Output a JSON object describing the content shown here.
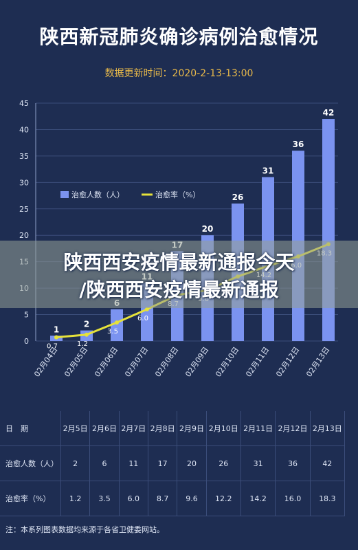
{
  "header": {
    "title": "陕西新冠肺炎确诊病例治愈情况",
    "subtitle": "数据更新时间：2020-2-13-13:00"
  },
  "banner": {
    "line1": "陕西西安疫情最新通报今天",
    "line2": "/陕西西安疫情最新通报"
  },
  "chart_data": {
    "type": "bar",
    "categories": [
      "02月04日",
      "02月05日",
      "02月06日",
      "02月07日",
      "02月08日",
      "02月09日",
      "02月10日",
      "02月11日",
      "02月12日",
      "02月13日"
    ],
    "series": [
      {
        "name": "治愈人数（人）",
        "type": "bar",
        "values": [
          1,
          2,
          6,
          11,
          17,
          20,
          26,
          31,
          36,
          42
        ]
      },
      {
        "name": "治愈率（%）",
        "type": "line",
        "values": [
          0.7,
          1.2,
          3.5,
          6.0,
          8.7,
          9.6,
          12.2,
          14.2,
          16.0,
          18.3
        ]
      }
    ],
    "ylim": [
      0,
      45
    ],
    "yticks": [
      0,
      5,
      10,
      15,
      20,
      25,
      30,
      35,
      40,
      45
    ],
    "legend_position": "top-left",
    "colors": {
      "bar": "#7b93f0",
      "line": "#e6e23a",
      "bar_label": "#ffffff",
      "line_label": "#ffffff"
    }
  },
  "table": {
    "header": [
      "日　期",
      "2月5日",
      "2月6日",
      "2月7日",
      "2月8日",
      "2月9日",
      "2月10日",
      "2月11日",
      "2月12日",
      "2月13日"
    ],
    "rows": [
      [
        "治愈人数（人）",
        "2",
        "6",
        "11",
        "17",
        "20",
        "26",
        "31",
        "36",
        "42"
      ],
      [
        "治愈率（%）",
        "1.2",
        "3.5",
        "6.0",
        "8.7",
        "9.6",
        "12.2",
        "14.2",
        "16.0",
        "18.3"
      ]
    ]
  },
  "footnote": "注：本系列图表数据均来源于各省卫健委网站。"
}
